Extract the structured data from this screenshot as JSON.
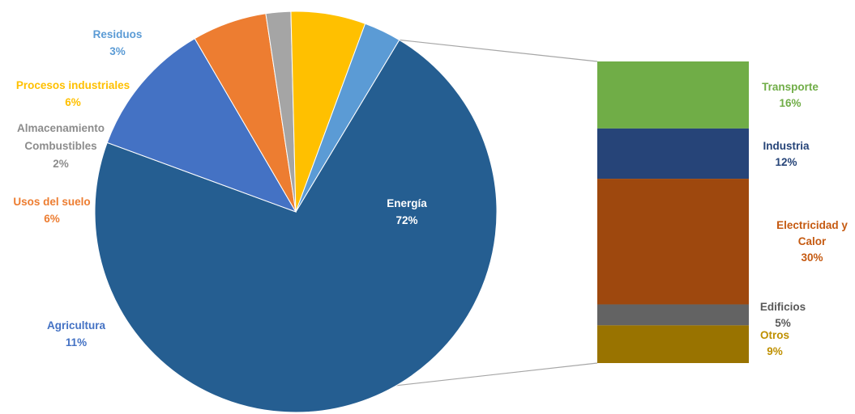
{
  "chart_data": [
    {
      "type": "pie",
      "slices": [
        {
          "label": "Energía",
          "value": 72,
          "value_label": "72%",
          "color": "#255E91",
          "label_color": "#FFFFFF"
        },
        {
          "label": "Agricultura",
          "value": 11,
          "value_label": "11%",
          "color": "#4472C4",
          "label_color": "#4472C4"
        },
        {
          "label": "Usos del suelo",
          "value": 6,
          "value_label": "6%",
          "color": "#ED7D31",
          "label_color": "#ED7D31"
        },
        {
          "label": "Almacenamiento\nCombustibles",
          "value": 2,
          "value_label": "2%",
          "color": "#A5A5A5",
          "label_color": "#8C8C8C"
        },
        {
          "label": "Procesos industriales",
          "value": 6,
          "value_label": "6%",
          "color": "#FFC000",
          "label_color": "#FFC000"
        },
        {
          "label": "Residuos",
          "value": 3,
          "value_label": "3%",
          "color": "#5B9BD5",
          "label_color": "#5B9BD5"
        }
      ],
      "exploded_slice": "Energía"
    },
    {
      "type": "stacked_bar",
      "parent": "Energía",
      "segments": [
        {
          "label": "Transporte",
          "value": 16,
          "value_label": "16%",
          "color": "#70AD47",
          "label_color": "#70AD47"
        },
        {
          "label": "Industria",
          "value": 12,
          "value_label": "12%",
          "color": "#264478",
          "label_color": "#264478"
        },
        {
          "label": "Electricidad y\nCalor",
          "value": 30,
          "value_label": "30%",
          "color": "#9E480E",
          "label_color": "#C55A11"
        },
        {
          "label": "Edificios",
          "value": 5,
          "value_label": "5%",
          "color": "#636363",
          "label_color": "#595959"
        },
        {
          "label": "Otros",
          "value": 9,
          "value_label": "9%",
          "color": "#997300",
          "label_color": "#BF9000"
        }
      ]
    }
  ]
}
